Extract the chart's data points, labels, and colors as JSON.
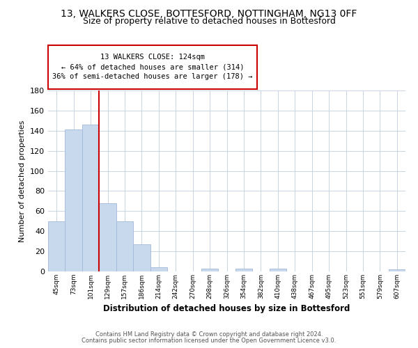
{
  "title": "13, WALKERS CLOSE, BOTTESFORD, NOTTINGHAM, NG13 0FF",
  "subtitle": "Size of property relative to detached houses in Bottesford",
  "xlabel": "Distribution of detached houses by size in Bottesford",
  "ylabel": "Number of detached properties",
  "bin_labels": [
    "45sqm",
    "73sqm",
    "101sqm",
    "129sqm",
    "157sqm",
    "186sqm",
    "214sqm",
    "242sqm",
    "270sqm",
    "298sqm",
    "326sqm",
    "354sqm",
    "382sqm",
    "410sqm",
    "438sqm",
    "467sqm",
    "495sqm",
    "523sqm",
    "551sqm",
    "579sqm",
    "607sqm"
  ],
  "bar_heights": [
    50,
    141,
    146,
    68,
    50,
    27,
    4,
    0,
    0,
    3,
    0,
    3,
    0,
    3,
    0,
    0,
    0,
    0,
    0,
    0,
    2
  ],
  "bar_color": "#c9d9ed",
  "bar_edge_color": "#a0b8d8",
  "vline_x_index": 2.5,
  "vline_color": "#cc0000",
  "annotation_line1": "13 WALKERS CLOSE: 124sqm",
  "annotation_line2": "← 64% of detached houses are smaller (314)",
  "annotation_line3": "36% of semi-detached houses are larger (178) →",
  "annotation_box_edge": "#cc0000",
  "ylim": [
    0,
    180
  ],
  "yticks": [
    0,
    20,
    40,
    60,
    80,
    100,
    120,
    140,
    160,
    180
  ],
  "footer_line1": "Contains HM Land Registry data © Crown copyright and database right 2024.",
  "footer_line2": "Contains public sector information licensed under the Open Government Licence v3.0.",
  "background_color": "#ffffff",
  "grid_color": "#c8d4e3",
  "title_fontsize": 10,
  "subtitle_fontsize": 9
}
